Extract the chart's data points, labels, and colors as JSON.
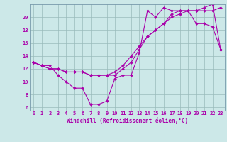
{
  "xlabel": "Windchill (Refroidissement éolien,°C)",
  "xlim": [
    -0.5,
    23.5
  ],
  "ylim": [
    5.5,
    22
  ],
  "yticks": [
    6,
    8,
    10,
    12,
    14,
    16,
    18,
    20
  ],
  "xticks": [
    0,
    1,
    2,
    3,
    4,
    5,
    6,
    7,
    8,
    9,
    10,
    11,
    12,
    13,
    14,
    15,
    16,
    17,
    18,
    19,
    20,
    21,
    22,
    23
  ],
  "bg_color": "#cce8e8",
  "line_color": "#aa00aa",
  "grid_color": "#99bbbb",
  "series1": {
    "x": [
      0,
      1,
      2,
      3,
      4,
      5,
      6,
      7,
      8,
      9,
      10,
      11,
      12,
      13,
      14,
      15,
      16,
      17,
      18,
      19,
      20,
      21,
      22,
      23
    ],
    "y": [
      13,
      12.5,
      12.5,
      11,
      10,
      9,
      9,
      6.5,
      6.5,
      7,
      10.5,
      11,
      11,
      14.5,
      21,
      20,
      21.5,
      21,
      21,
      21,
      19,
      19,
      18.5,
      15
    ]
  },
  "series2": {
    "x": [
      0,
      1,
      2,
      3,
      4,
      5,
      6,
      7,
      8,
      9,
      10,
      11,
      12,
      13,
      14,
      15,
      16,
      17,
      18,
      19,
      20,
      21,
      22,
      23
    ],
    "y": [
      13,
      12.5,
      12,
      12,
      11.5,
      11.5,
      11.5,
      11,
      11,
      11,
      11.5,
      12.5,
      14,
      15.5,
      17,
      18,
      19,
      20.5,
      21,
      21,
      21,
      21,
      21,
      21.5
    ]
  },
  "series3": {
    "x": [
      0,
      1,
      2,
      3,
      4,
      5,
      6,
      7,
      8,
      9,
      10,
      11,
      12,
      13,
      14,
      15,
      16,
      17,
      18,
      19,
      20,
      21,
      22,
      23
    ],
    "y": [
      13,
      12.5,
      12,
      12,
      11.5,
      11.5,
      11.5,
      11,
      11,
      11,
      11,
      12,
      13,
      15,
      17,
      18,
      19,
      20,
      20.5,
      21,
      21,
      21.5,
      22,
      15
    ]
  }
}
